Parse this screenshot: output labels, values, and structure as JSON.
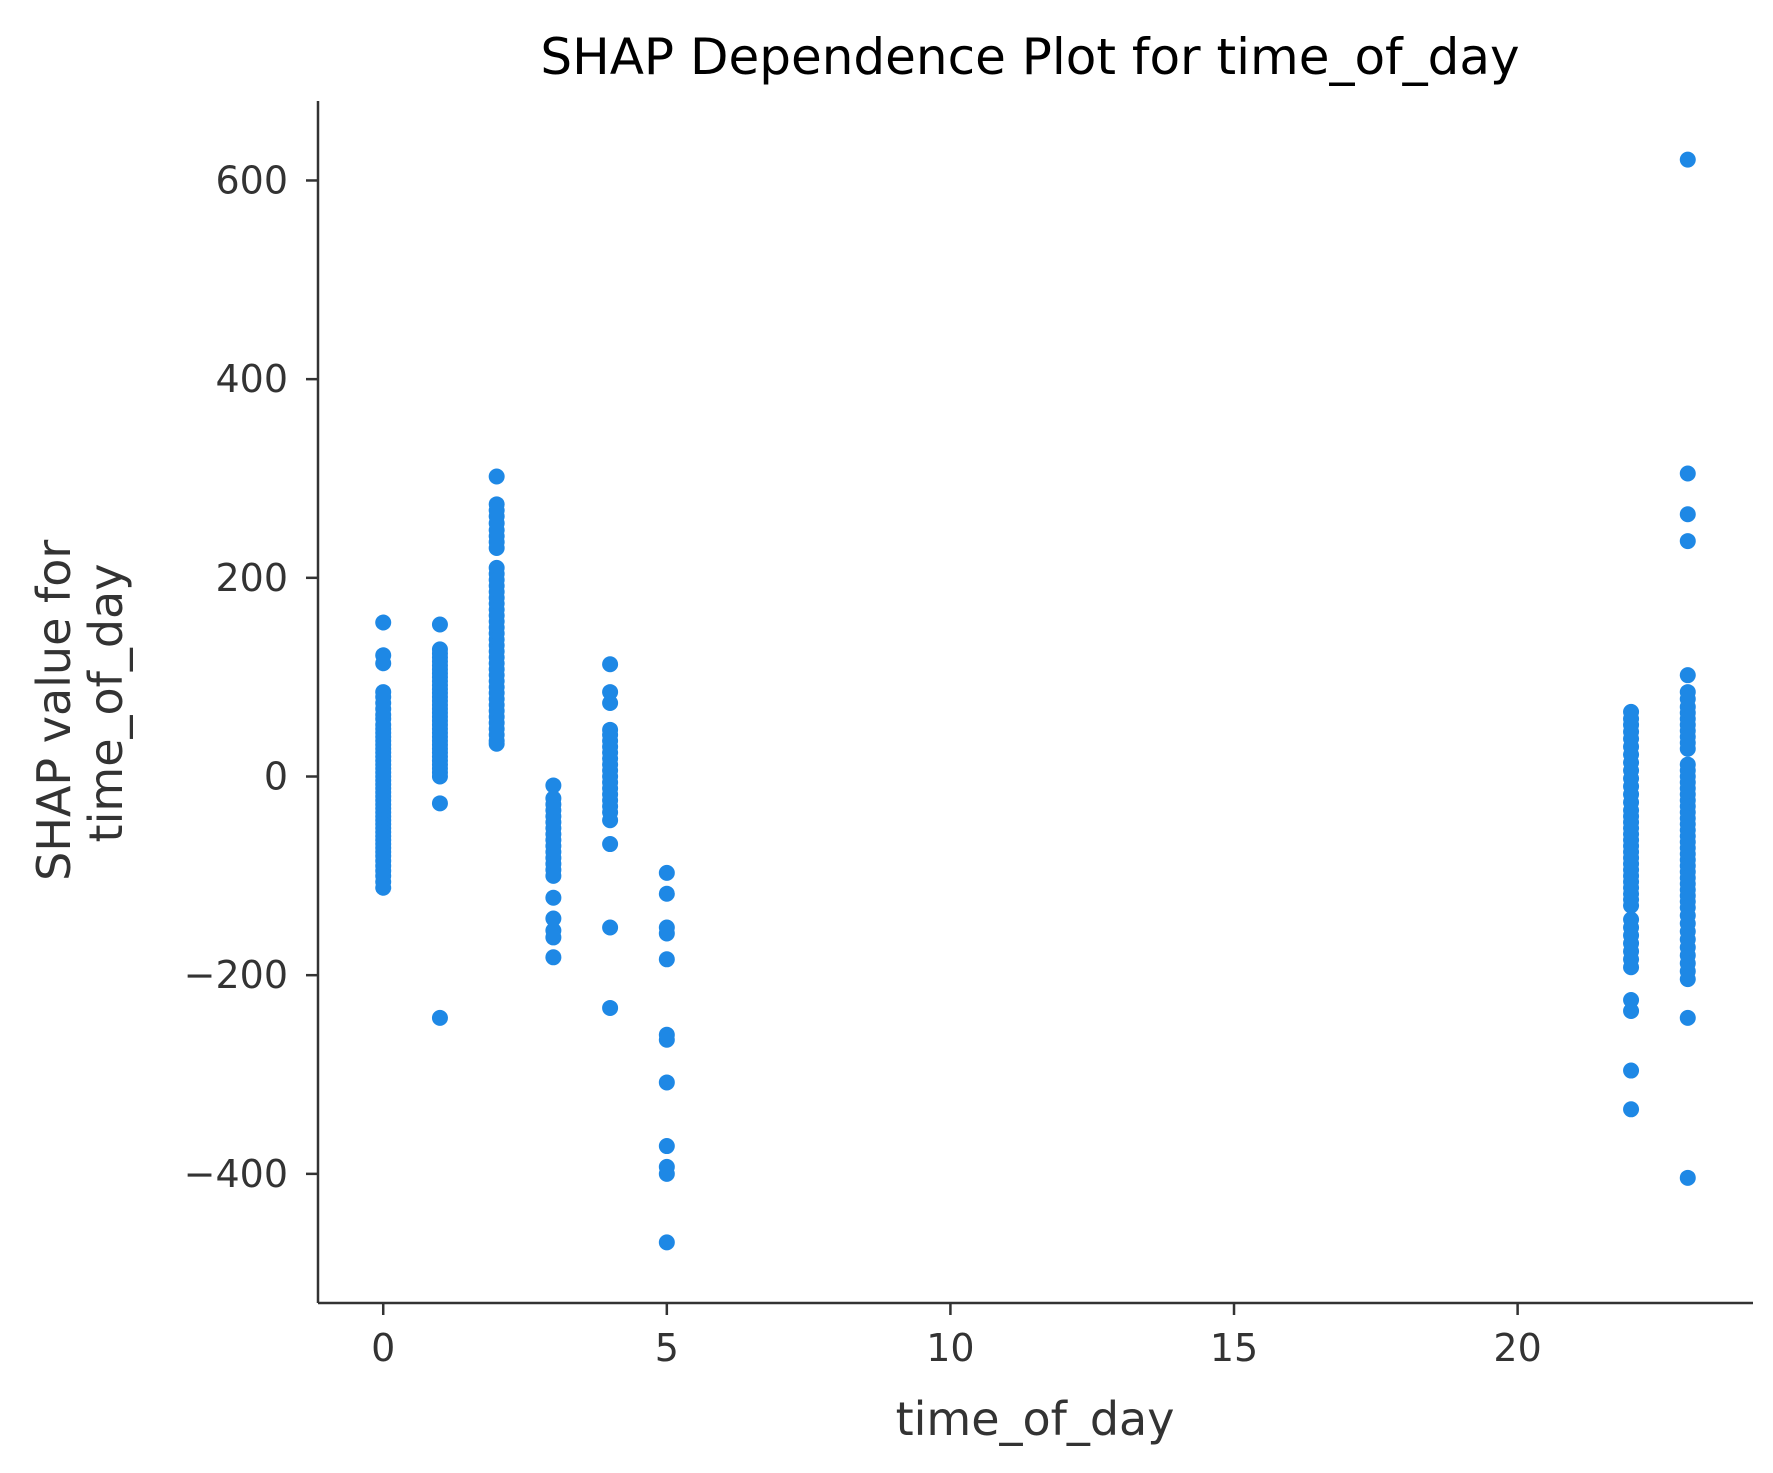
{
  "chart_data": {
    "type": "scatter",
    "title": "SHAP Dependence Plot for time_of_day",
    "xlabel": "time_of_day",
    "ylabel_lines": [
      "SHAP value for",
      "time_of_day"
    ],
    "xlim": [
      -1.15,
      24.15
    ],
    "ylim": [
      -530,
      680
    ],
    "xticks": [
      0,
      5,
      10,
      15,
      20
    ],
    "xtick_labels": [
      "0",
      "5",
      "10",
      "15",
      "20"
    ],
    "yticks": [
      -400,
      -200,
      0,
      200,
      400,
      600
    ],
    "ytick_labels": [
      "−400",
      "−200",
      "0",
      "200",
      "400",
      "600"
    ],
    "grid": false,
    "point_color": "#1e88e5",
    "points_by_x": [
      {
        "x": 0,
        "y": [
          155,
          122,
          114,
          85,
          80,
          74,
          68,
          62,
          58,
          52,
          48,
          44,
          40,
          36,
          32,
          28,
          24,
          20,
          16,
          12,
          8,
          4,
          0,
          -4,
          -8,
          -12,
          -16,
          -20,
          -24,
          -28,
          -32,
          -36,
          -40,
          -44,
          -48,
          -52,
          -56,
          -60,
          -64,
          -68,
          -72,
          -76,
          -80,
          -85,
          -90,
          -95,
          -100,
          -106,
          -112
        ]
      },
      {
        "x": 1,
        "y": [
          153,
          128,
          124,
          120,
          116,
          112,
          108,
          104,
          100,
          96,
          92,
          88,
          84,
          80,
          76,
          72,
          68,
          64,
          60,
          56,
          52,
          48,
          44,
          40,
          36,
          32,
          28,
          24,
          20,
          16,
          12,
          8,
          4,
          0,
          -27,
          -243
        ]
      },
      {
        "x": 2,
        "y": [
          302,
          274,
          268,
          262,
          255,
          248,
          242,
          236,
          230,
          210,
          204,
          198,
          192,
          186,
          180,
          174,
          168,
          162,
          156,
          150,
          144,
          138,
          132,
          126,
          120,
          114,
          108,
          102,
          96,
          90,
          84,
          78,
          72,
          66,
          60,
          54,
          48,
          42,
          36,
          33
        ]
      },
      {
        "x": 3,
        "y": [
          -9,
          -22,
          -28,
          -34,
          -40,
          -46,
          -52,
          -58,
          -64,
          -70,
          -76,
          -82,
          -88,
          -94,
          -100,
          -122,
          -143,
          -155,
          -162,
          -182
        ]
      },
      {
        "x": 4,
        "y": [
          113,
          85,
          74,
          47,
          42,
          36,
          30,
          24,
          18,
          12,
          6,
          0,
          -6,
          -12,
          -18,
          -24,
          -30,
          -36,
          -44,
          -68,
          -152,
          -233
        ]
      },
      {
        "x": 5,
        "y": [
          -97,
          -118,
          -152,
          -158,
          -184,
          -260,
          -265,
          -308,
          -372,
          -393,
          -400,
          -469
        ]
      },
      {
        "x": 22,
        "y": [
          65,
          58,
          52,
          45,
          38,
          30,
          22,
          14,
          6,
          -2,
          -10,
          -18,
          -26,
          -34,
          -40,
          -46,
          -52,
          -58,
          -64,
          -70,
          -76,
          -82,
          -88,
          -94,
          -100,
          -106,
          -112,
          -118,
          -124,
          -130,
          -144,
          -152,
          -160,
          -168,
          -176,
          -184,
          -192,
          -225,
          -236,
          -296,
          -335
        ]
      },
      {
        "x": 23,
        "y": [
          621,
          305,
          264,
          237,
          102,
          85,
          78,
          70,
          64,
          58,
          52,
          46,
          40,
          34,
          28,
          12,
          6,
          0,
          -6,
          -12,
          -18,
          -24,
          -30,
          -36,
          -42,
          -48,
          -54,
          -60,
          -66,
          -72,
          -78,
          -84,
          -90,
          -96,
          -102,
          -108,
          -114,
          -120,
          -126,
          -132,
          -140,
          -148,
          -156,
          -164,
          -172,
          -180,
          -188,
          -196,
          -204,
          -243,
          -404
        ]
      }
    ]
  }
}
